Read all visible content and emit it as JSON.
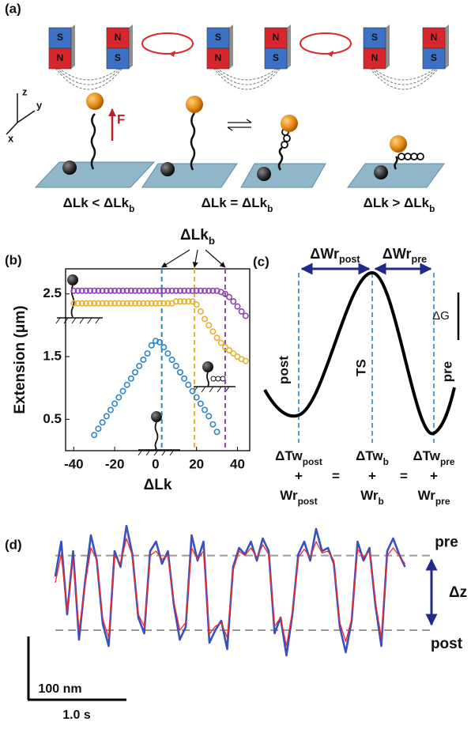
{
  "panel_a": {
    "label": "(a)",
    "magnets": [
      [
        "S",
        "N"
      ],
      [
        "N",
        "S"
      ],
      [
        "S",
        "N"
      ],
      [
        "N",
        "S"
      ],
      [
        "S",
        "N"
      ],
      [
        "N",
        "S"
      ]
    ],
    "force": "F",
    "axes": [
      "x",
      "y",
      "z"
    ],
    "conditions": [
      {
        "text": "ΔLk < ΔLk",
        "sub": "b"
      },
      {
        "text": "ΔLk = ΔLk",
        "sub": "b"
      },
      {
        "text": "ΔLk > ΔLk",
        "sub": "b"
      }
    ]
  },
  "chart_data": [
    {
      "type": "scatter",
      "panel_label": "(b)",
      "xlabel": "ΔLk",
      "ylabel": "Extension (μm)",
      "annotation": {
        "text": "ΔLk",
        "sub": "b"
      },
      "xlim": [
        -44,
        46
      ],
      "ylim": [
        0,
        2.9
      ],
      "xticks": [
        -40,
        -20,
        0,
        20,
        40
      ],
      "yticks": [
        0.5,
        1.5,
        2.5
      ],
      "thresholds": [
        {
          "value": 3,
          "color": "#2a86c8"
        },
        {
          "value": 19,
          "color": "#e8b033"
        },
        {
          "value": 34,
          "color": "#8e44ad"
        }
      ],
      "series": [
        {
          "color": "#8e44ad",
          "x": [
            -40,
            -38,
            -36,
            -34,
            -32,
            -30,
            -28,
            -26,
            -24,
            -22,
            -20,
            -18,
            -16,
            -14,
            -12,
            -10,
            -8,
            -6,
            -4,
            -2,
            0,
            2,
            4,
            6,
            8,
            10,
            12,
            14,
            16,
            18,
            20,
            22,
            24,
            26,
            28,
            30,
            32,
            34,
            36,
            38,
            40,
            42,
            44
          ],
          "values": [
            2.55,
            2.55,
            2.55,
            2.55,
            2.55,
            2.55,
            2.55,
            2.55,
            2.55,
            2.55,
            2.55,
            2.55,
            2.55,
            2.55,
            2.55,
            2.55,
            2.55,
            2.55,
            2.55,
            2.55,
            2.55,
            2.55,
            2.55,
            2.55,
            2.55,
            2.55,
            2.55,
            2.55,
            2.55,
            2.55,
            2.55,
            2.55,
            2.55,
            2.55,
            2.55,
            2.55,
            2.53,
            2.5,
            2.45,
            2.38,
            2.3,
            2.22,
            2.15
          ]
        },
        {
          "color": "#e8b033",
          "x": [
            -40,
            -38,
            -36,
            -34,
            -32,
            -30,
            -28,
            -26,
            -24,
            -22,
            -20,
            -18,
            -16,
            -14,
            -12,
            -10,
            -8,
            -6,
            -4,
            -2,
            0,
            2,
            4,
            6,
            8,
            10,
            12,
            14,
            16,
            18,
            20,
            22,
            24,
            26,
            28,
            30,
            32,
            34,
            36,
            38,
            40,
            42,
            44
          ],
          "values": [
            2.35,
            2.35,
            2.35,
            2.35,
            2.35,
            2.35,
            2.35,
            2.35,
            2.35,
            2.35,
            2.35,
            2.35,
            2.35,
            2.35,
            2.35,
            2.35,
            2.35,
            2.35,
            2.35,
            2.35,
            2.35,
            2.35,
            2.35,
            2.35,
            2.35,
            2.38,
            2.38,
            2.38,
            2.38,
            2.38,
            2.33,
            2.22,
            2.1,
            2.0,
            1.9,
            1.8,
            1.72,
            1.65,
            1.6,
            1.55,
            1.5,
            1.46,
            1.43
          ]
        },
        {
          "color": "#2a86c8",
          "x": [
            -30,
            -28,
            -26,
            -24,
            -22,
            -20,
            -18,
            -16,
            -14,
            -12,
            -10,
            -8,
            -6,
            -4,
            -2,
            0,
            2,
            4,
            6,
            8,
            10,
            12,
            14,
            16,
            18,
            20,
            22,
            24,
            26,
            28,
            30
          ],
          "values": [
            0.25,
            0.35,
            0.45,
            0.55,
            0.65,
            0.75,
            0.85,
            0.95,
            1.05,
            1.15,
            1.25,
            1.35,
            1.45,
            1.55,
            1.68,
            1.75,
            1.73,
            1.65,
            1.55,
            1.45,
            1.35,
            1.25,
            1.15,
            1.05,
            0.95,
            0.85,
            0.75,
            0.65,
            0.55,
            0.42,
            0.3
          ]
        }
      ]
    },
    {
      "type": "line",
      "panel_label": "(d)",
      "x": [
        0,
        0.06,
        0.12,
        0.18,
        0.24,
        0.3,
        0.36,
        0.42,
        0.48,
        0.54,
        0.6,
        0.66,
        0.72,
        0.78,
        0.84,
        0.9,
        0.96,
        1.02,
        1.08,
        1.14,
        1.2,
        1.26,
        1.32,
        1.38,
        1.44,
        1.5,
        1.56,
        1.62,
        1.68,
        1.74,
        1.8,
        1.86,
        1.92,
        1.98,
        2.04,
        2.1,
        2.16,
        2.22,
        2.28,
        2.34,
        2.4,
        2.46,
        2.52,
        2.58,
        2.64,
        2.7,
        2.76,
        2.82,
        2.88,
        2.94,
        3.0,
        3.06,
        3.12,
        3.18,
        3.24,
        3.3,
        3.36,
        3.42,
        3.48,
        3.54
      ],
      "series": [
        {
          "color": "#3a4fc0",
          "values": [
            85,
            140,
            25,
            125,
            -15,
            75,
            150,
            110,
            10,
            -25,
            125,
            100,
            165,
            120,
            20,
            -5,
            125,
            140,
            105,
            125,
            40,
            -15,
            5,
            150,
            110,
            140,
            -20,
            0,
            15,
            -30,
            100,
            130,
            120,
            140,
            110,
            145,
            125,
            -5,
            20,
            -40,
            25,
            120,
            140,
            110,
            160,
            125,
            130,
            105,
            5,
            -35,
            15,
            140,
            110,
            130,
            40,
            -25,
            125,
            145,
            120,
            100
          ]
        },
        {
          "color": "#ee2a2a",
          "values": [
            75,
            120,
            30,
            112,
            0,
            70,
            130,
            112,
            18,
            -12,
            118,
            105,
            145,
            118,
            25,
            6,
            118,
            125,
            112,
            118,
            45,
            0,
            12,
            130,
            112,
            125,
            -6,
            6,
            12,
            -12,
            95,
            125,
            118,
            130,
            115,
            135,
            120,
            6,
            20,
            -25,
            30,
            115,
            128,
            115,
            140,
            122,
            125,
            110,
            12,
            -18,
            18,
            128,
            115,
            125,
            45,
            -12,
            118,
            130,
            118,
            105
          ]
        }
      ],
      "levels": [
        {
          "value": 118,
          "label": "pre"
        },
        {
          "value": 0,
          "label": "post"
        }
      ],
      "delta_label": "Δz",
      "scale_bars": {
        "y": {
          "value": 100,
          "label": "100 nm"
        },
        "x": {
          "value": 1.0,
          "label": "1.0 s"
        }
      }
    }
  ],
  "panel_c": {
    "label": "(c)",
    "arrows": [
      {
        "text": "ΔWr",
        "sub": "post"
      },
      {
        "text": "ΔWr",
        "sub": "pre"
      }
    ],
    "energy": "ΔG",
    "states": [
      "post",
      "TS",
      "pre"
    ],
    "columns": [
      {
        "top": {
          "text": "ΔTw",
          "sub": "post"
        },
        "plus": "+",
        "bottom": {
          "text": "Wr",
          "sub": "post"
        }
      },
      {
        "top": {
          "text": "ΔTw",
          "sub": "b"
        },
        "plus": "+",
        "bottom": {
          "text": "Wr",
          "sub": "b"
        }
      },
      {
        "top": {
          "text": "ΔTw",
          "sub": "pre"
        },
        "plus": "+",
        "bottom": {
          "text": "Wr",
          "sub": "pre"
        }
      }
    ],
    "equals": [
      "=",
      "="
    ]
  }
}
